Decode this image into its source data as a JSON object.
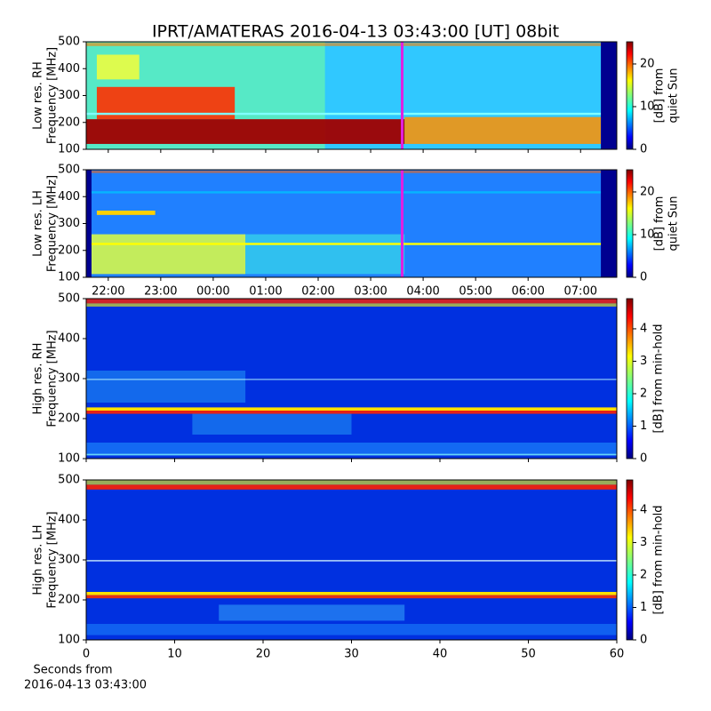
{
  "title": "IPRT/AMATERAS 2016-04-13 03:43:00 [UT]   08bit",
  "chart_data": [
    {
      "type": "heatmap",
      "ylabel": [
        "Low res. RH",
        "Frequency [MHz]"
      ],
      "ylim": [
        100,
        500
      ],
      "yticks": [
        100,
        200,
        300,
        400,
        500
      ],
      "xlim": [
        21.58,
        31.69
      ],
      "xticks": [
        {
          "value": 22,
          "label": "22:00"
        },
        {
          "value": 23,
          "label": "23:00"
        },
        {
          "value": 24,
          "label": "00:00"
        },
        {
          "value": 25,
          "label": "01:00"
        },
        {
          "value": 26,
          "label": "02:00"
        },
        {
          "value": 27,
          "label": "03:00"
        },
        {
          "value": 28,
          "label": "04:00"
        },
        {
          "value": 29,
          "label": "05:00"
        },
        {
          "value": 30,
          "label": "06:00"
        },
        {
          "value": 31,
          "label": "07:00"
        }
      ],
      "marker_x": 27.6,
      "marker_color": "#e020e0",
      "colorbar_label": [
        "[dB] from",
        "quiet Sun"
      ],
      "clim": [
        0,
        25.2
      ],
      "cticks": [
        0,
        10,
        20
      ]
    },
    {
      "type": "heatmap",
      "ylabel": [
        "Low res. LH",
        "Frequency [MHz]"
      ],
      "ylim": [
        100,
        500
      ],
      "yticks": [
        100,
        200,
        300,
        400,
        500
      ],
      "xlim": [
        21.58,
        31.69
      ],
      "xticks": [
        {
          "value": 22,
          "label": "22:00"
        },
        {
          "value": 23,
          "label": "23:00"
        },
        {
          "value": 24,
          "label": "00:00"
        },
        {
          "value": 25,
          "label": "01:00"
        },
        {
          "value": 26,
          "label": "02:00"
        },
        {
          "value": 27,
          "label": "03:00"
        },
        {
          "value": 28,
          "label": "04:00"
        },
        {
          "value": 29,
          "label": "05:00"
        },
        {
          "value": 30,
          "label": "06:00"
        },
        {
          "value": 31,
          "label": "07:00"
        }
      ],
      "marker_x": 27.6,
      "marker_color": "#e020e0",
      "colorbar_label": [
        "[dB] from",
        "quiet Sun"
      ],
      "clim": [
        0,
        25.2
      ],
      "cticks": [
        0,
        10,
        20
      ]
    },
    {
      "type": "heatmap",
      "ylabel": [
        "High res. RH",
        "Frequency [MHz]"
      ],
      "ylim": [
        100,
        500
      ],
      "yticks": [
        100,
        200,
        300,
        400,
        500
      ],
      "xlim": [
        0,
        60
      ],
      "xticks": [
        0,
        10,
        20,
        30,
        40,
        50,
        60
      ],
      "colorbar_label": [
        "[dB] from min-hold"
      ],
      "clim": [
        0,
        4.93
      ],
      "cticks": [
        0,
        1,
        2,
        3,
        4
      ]
    },
    {
      "type": "heatmap",
      "ylabel": [
        "High res. LH",
        "Frequency [MHz]"
      ],
      "ylim": [
        100,
        500
      ],
      "yticks": [
        100,
        200,
        300,
        400,
        500
      ],
      "xlim": [
        0,
        60
      ],
      "xticks": [
        0,
        10,
        20,
        30,
        40,
        50,
        60
      ],
      "xlabel": [
        "Seconds from",
        "2016-04-13 03:43:00"
      ],
      "colorbar_label": [
        "[dB] from min-hold"
      ],
      "clim": [
        0,
        4.93
      ],
      "cticks": [
        0,
        1,
        2,
        3,
        4
      ]
    }
  ]
}
